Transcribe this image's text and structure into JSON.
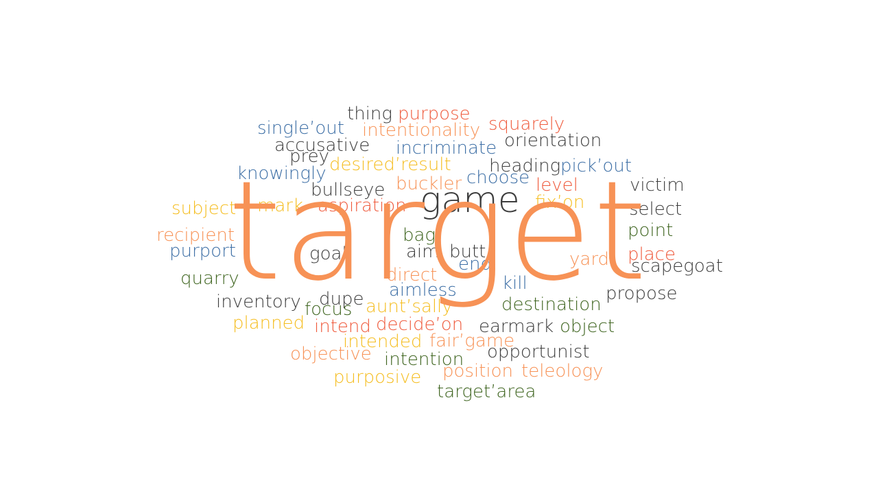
{
  "cloud": {
    "main_word": "target",
    "colors": {
      "dark": "#3d3d3d",
      "red": "#ef5a3c",
      "orange": "#f79256",
      "yellow": "#f5bd1f",
      "blue": "#3c6ea5",
      "green": "#3f6520"
    },
    "words": [
      {
        "text": "thing",
        "color": "dark"
      },
      {
        "text": "purpose",
        "color": "red"
      },
      {
        "text": "single’out",
        "color": "blue"
      },
      {
        "text": "intentionality",
        "color": "orange"
      },
      {
        "text": "squarely",
        "color": "red"
      },
      {
        "text": "accusative",
        "color": "dark"
      },
      {
        "text": "incriminate",
        "color": "blue"
      },
      {
        "text": "orientation",
        "color": "dark"
      },
      {
        "text": "prey",
        "color": "dark"
      },
      {
        "text": "desired’result",
        "color": "yellow"
      },
      {
        "text": "heading",
        "color": "dark"
      },
      {
        "text": "pick’out",
        "color": "blue"
      },
      {
        "text": "knowingly",
        "color": "blue"
      },
      {
        "text": "choose",
        "color": "blue"
      },
      {
        "text": "bullseye",
        "color": "dark"
      },
      {
        "text": "buckler",
        "color": "orange"
      },
      {
        "text": "level",
        "color": "red"
      },
      {
        "text": "victim",
        "color": "dark"
      },
      {
        "text": "game",
        "color": "dark"
      },
      {
        "text": "subject",
        "color": "yellow"
      },
      {
        "text": "mark",
        "color": "yellow"
      },
      {
        "text": "aspiration",
        "color": "red"
      },
      {
        "text": "fix’on",
        "color": "yellow"
      },
      {
        "text": "select",
        "color": "dark"
      },
      {
        "text": "recipient",
        "color": "orange"
      },
      {
        "text": "point",
        "color": "green"
      },
      {
        "text": "bag",
        "color": "green"
      },
      {
        "text": "purport",
        "color": "blue"
      },
      {
        "text": "goal",
        "color": "dark"
      },
      {
        "text": "aim",
        "color": "dark"
      },
      {
        "text": "butt",
        "color": "dark"
      },
      {
        "text": "place",
        "color": "red"
      },
      {
        "text": "yard",
        "color": "orange"
      },
      {
        "text": "end",
        "color": "blue"
      },
      {
        "text": "scapegoat",
        "color": "dark"
      },
      {
        "text": "quarry",
        "color": "green"
      },
      {
        "text": "direct",
        "color": "orange"
      },
      {
        "text": "kill",
        "color": "blue"
      },
      {
        "text": "aimless",
        "color": "blue"
      },
      {
        "text": "propose",
        "color": "dark"
      },
      {
        "text": "inventory",
        "color": "dark"
      },
      {
        "text": "dupe",
        "color": "dark"
      },
      {
        "text": "focus",
        "color": "green"
      },
      {
        "text": "aunt’sally",
        "color": "yellow"
      },
      {
        "text": "destination",
        "color": "green"
      },
      {
        "text": "planned",
        "color": "yellow"
      },
      {
        "text": "intend",
        "color": "red"
      },
      {
        "text": "decide’on",
        "color": "red"
      },
      {
        "text": "earmark",
        "color": "dark"
      },
      {
        "text": "object",
        "color": "green"
      },
      {
        "text": "intended",
        "color": "yellow"
      },
      {
        "text": "fair’game",
        "color": "orange"
      },
      {
        "text": "objective",
        "color": "orange"
      },
      {
        "text": "opportunist",
        "color": "dark"
      },
      {
        "text": "intention",
        "color": "green"
      },
      {
        "text": "purposive",
        "color": "yellow"
      },
      {
        "text": "position",
        "color": "orange"
      },
      {
        "text": "teleology",
        "color": "orange"
      },
      {
        "text": "target’area",
        "color": "green"
      }
    ]
  }
}
